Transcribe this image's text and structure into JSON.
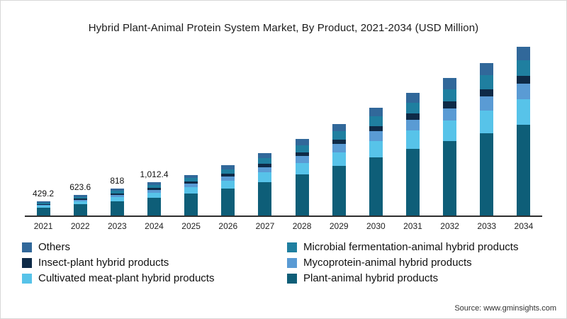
{
  "title": "Hybrid Plant-Animal Protein System Market, By Product, 2021-2034 (USD Million)",
  "source": "Source: www.gminsights.com",
  "chart_data": {
    "type": "bar",
    "stacked": true,
    "title": "Hybrid Plant-Animal Protein System Market, By Product, 2021-2034 (USD Million)",
    "xlabel": "",
    "ylabel": "USD Million",
    "axis_visible": "x-only",
    "grid": false,
    "legend_position": "bottom",
    "categories": [
      "2021",
      "2022",
      "2023",
      "2024",
      "2025",
      "2026",
      "2027",
      "2028",
      "2029",
      "2030",
      "2031",
      "2032",
      "2033",
      "2034"
    ],
    "value_labels": [
      "429.2",
      "623.6",
      "818",
      "1,012.4",
      "",
      "",
      "",
      "",
      "",
      "",
      "",
      "",
      "",
      ""
    ],
    "totals": [
      429.2,
      623.6,
      818,
      1012.4,
      1241,
      1541,
      1900,
      2331,
      2800,
      3300,
      3752,
      4200,
      4652,
      5152
    ],
    "series": [
      {
        "name": "Plant-animal hybrid products",
        "color": "#0e5e78",
        "values": [
          232,
          337,
          442,
          547,
          670,
          832,
          1026,
          1258,
          1512,
          1782,
          2025,
          2268,
          2511,
          2781
        ]
      },
      {
        "name": "Cultivated meat-plant hybrid products",
        "color": "#57c3e9",
        "values": [
          64,
          94,
          123,
          152,
          186,
          231,
          285,
          350,
          420,
          495,
          563,
          630,
          698,
          773
        ]
      },
      {
        "name": "Mycoprotein-animal hybrid products",
        "color": "#5a9bd4",
        "values": [
          39,
          56,
          74,
          91,
          112,
          139,
          171,
          210,
          252,
          297,
          338,
          378,
          419,
          464
        ]
      },
      {
        "name": "Insect-plant hybrid products",
        "color": "#0e2a47",
        "values": [
          21,
          31,
          41,
          51,
          62,
          77,
          95,
          117,
          140,
          165,
          188,
          210,
          233,
          258
        ]
      },
      {
        "name": "Microbial fermentation-animal hybrid products",
        "color": "#1f7fa0",
        "values": [
          39,
          56,
          74,
          91,
          112,
          139,
          171,
          210,
          252,
          297,
          338,
          378,
          419,
          464
        ]
      },
      {
        "name": "Others",
        "color": "#31689a",
        "values": [
          34,
          50,
          65,
          81,
          99,
          123,
          152,
          186,
          224,
          264,
          300,
          336,
          372,
          412
        ]
      }
    ]
  },
  "legend": {
    "items": [
      {
        "label": "Others",
        "color": "#31689a"
      },
      {
        "label": "Microbial fermentation-animal hybrid products",
        "color": "#1f7fa0"
      },
      {
        "label": "Insect-plant hybrid products",
        "color": "#0e2a47"
      },
      {
        "label": "Mycoprotein-animal hybrid products",
        "color": "#5a9bd4"
      },
      {
        "label": "Cultivated meat-plant hybrid products",
        "color": "#57c3e9"
      },
      {
        "label": "Plant-animal hybrid products",
        "color": "#0e5e78"
      }
    ]
  }
}
